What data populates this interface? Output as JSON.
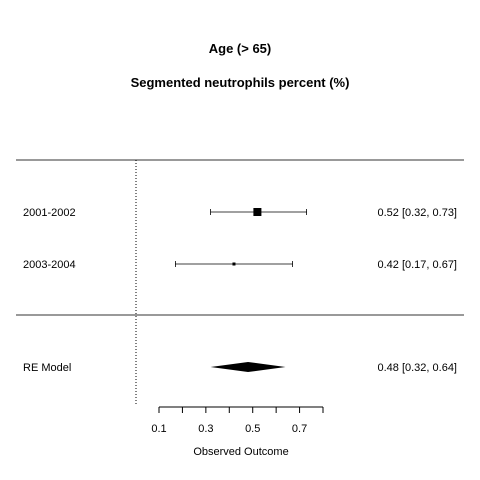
{
  "chart_data": {
    "type": "forest",
    "title": "Age (> 65)",
    "subtitle": "Segmented neutrophils percent (%)",
    "xlabel": "Observed Outcome",
    "xlim": [
      0.05,
      0.8
    ],
    "x_ticks": [
      0.1,
      0.2,
      0.3,
      0.4,
      0.5,
      0.6,
      0.7,
      0.8
    ],
    "x_tick_labels": [
      "0.1",
      "0.3",
      "0.5",
      "0.7"
    ],
    "reference_line": 0,
    "studies": [
      {
        "label": "2001-2002",
        "estimate": 0.52,
        "ci_low": 0.32,
        "ci_high": 0.73,
        "text": "0.52 [0.32, 0.73]",
        "weight": "large"
      },
      {
        "label": "2003-2004",
        "estimate": 0.42,
        "ci_low": 0.17,
        "ci_high": 0.67,
        "text": "0.42 [0.17, 0.67]",
        "weight": "small"
      }
    ],
    "summary": {
      "label": "RE Model",
      "estimate": 0.48,
      "ci_low": 0.32,
      "ci_high": 0.64,
      "text": "0.48 [0.32, 0.64]"
    }
  }
}
